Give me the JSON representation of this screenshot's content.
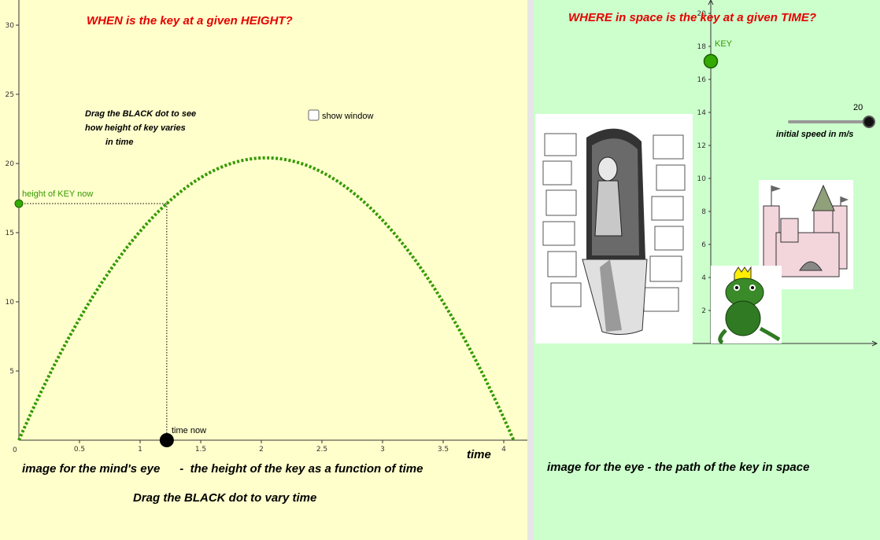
{
  "left": {
    "title": "WHEN is the key at a given HEIGHT?",
    "instructions": [
      "Drag the BLACK dot to see",
      "how height of key varies",
      "in time"
    ],
    "show_window_label": "show window",
    "height_label": "height of KEY now",
    "time_now_label": "time now",
    "time_axis_label": "time",
    "caption": "image for the mind's eye      -  the height of the key as a function of time",
    "drag_hint": "Drag the BLACK dot to vary time"
  },
  "right": {
    "title": "WHERE in space is the key at a given TIME?",
    "key_label": "KEY",
    "slider_value": "20",
    "slider_label": "initial speed in m/s",
    "caption": "image for the eye  -  the path of the key in space"
  },
  "chart_data": [
    {
      "type": "line",
      "x_ticks": [
        "0",
        "0.5",
        "1",
        "1.5",
        "2",
        "2.5",
        "3",
        "3.5",
        "4"
      ],
      "y_ticks": [
        "5",
        "10",
        "15",
        "20",
        "25",
        "30"
      ],
      "xlim": [
        0,
        4.1
      ],
      "ylim": [
        0,
        30
      ],
      "xlabel": "time",
      "series": [
        {
          "formula": "h = 20t - 4.9t^2",
          "initial_speed": 20,
          "g": 9.8,
          "t_end": 4.08,
          "color": "#339900",
          "style": "dotted"
        }
      ],
      "time_now": 1.22,
      "height_now": 17.1
    },
    {
      "type": "scatter",
      "y_ticks": [
        "2",
        "4",
        "6",
        "8",
        "10",
        "12",
        "14",
        "16",
        "18",
        "20"
      ],
      "ylim": [
        0,
        20
      ],
      "key_height": 17.1
    }
  ],
  "colors": {
    "accent_red": "#e60000",
    "curve_green": "#339900",
    "left_bg": "#ffffcc",
    "right_bg": "#ccffcc"
  },
  "icons": [
    "elf-girl-in-tower-picture",
    "frog-prince-picture",
    "castle-picture"
  ]
}
